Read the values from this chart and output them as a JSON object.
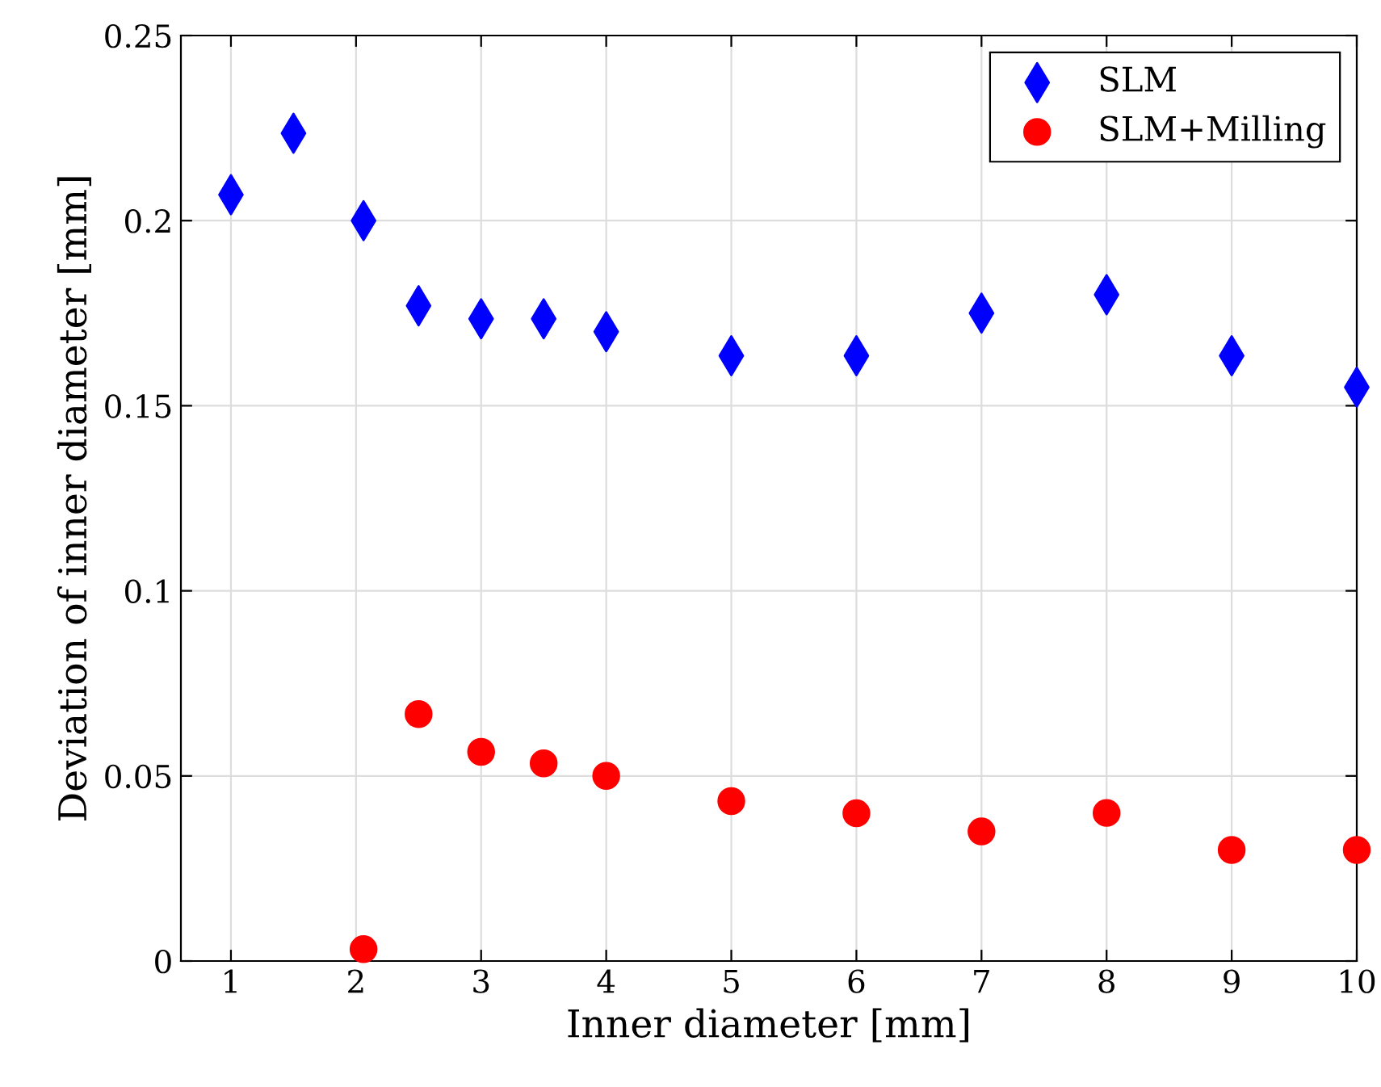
{
  "chart_data": {
    "type": "scatter",
    "xlabel": "Inner diameter [mm]",
    "ylabel": "Deviation of inner diameter [mm]",
    "xlim": [
      0.6,
      10
    ],
    "xticks": [
      1,
      2,
      3,
      4,
      5,
      6,
      7,
      8,
      9,
      10
    ],
    "ylim": [
      0,
      0.25
    ],
    "yticks": [
      0,
      0.05,
      0.1,
      0.15,
      0.2,
      0.25
    ],
    "grid": true,
    "legend": "top right",
    "series": [
      {
        "name": "SLM",
        "color": "#0000ff",
        "marker": "diamond",
        "x": [
          1,
          1.5,
          2.06,
          2.5,
          3,
          3.5,
          4,
          5,
          6,
          7,
          8,
          9,
          10
        ],
        "values": [
          0.207,
          0.2236,
          0.2,
          0.177,
          0.1735,
          0.1735,
          0.17,
          0.1635,
          0.1635,
          0.175,
          0.18,
          0.1635,
          0.155
        ]
      },
      {
        "name": "SLM+Milling",
        "color": "#ff0000",
        "marker": "circle",
        "x": [
          2.06,
          2.5,
          3,
          3.5,
          4,
          5,
          6,
          7,
          8,
          9,
          10
        ],
        "values": [
          0.0032,
          0.0667,
          0.0565,
          0.0534,
          0.05,
          0.0432,
          0.0399,
          0.035,
          0.04,
          0.03,
          0.03
        ]
      }
    ]
  }
}
